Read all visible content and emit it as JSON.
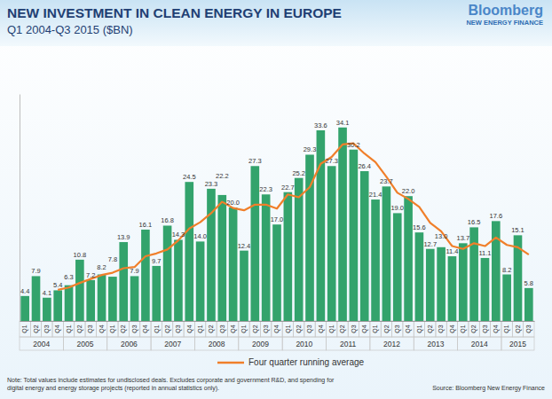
{
  "chart_data": {
    "type": "bar",
    "title": "NEW INVESTMENT IN CLEAN ENERGY IN EUROPE",
    "subtitle": "Q1 2004-Q3 2015 ($BN)",
    "brand": "Bloomberg",
    "brand_subtitle": "NEW ENERGY FINANCE",
    "note": [
      "Note: Total values include estimates for undisclosed deals. Excludes corporate and government R&D, and spending for",
      "digital energy and energy storage projects (reported in annual statistics only)."
    ],
    "source": "Source: Bloomberg New Energy Finance",
    "categories": [
      "Q1",
      "Q2",
      "Q3",
      "Q4",
      "Q1",
      "Q2",
      "Q3",
      "Q4",
      "Q1",
      "Q2",
      "Q3",
      "Q4",
      "Q1",
      "Q2",
      "Q3",
      "Q4",
      "Q1",
      "Q2",
      "Q3",
      "Q4",
      "Q1",
      "Q2",
      "Q3",
      "Q4",
      "Q1",
      "Q2",
      "Q3",
      "Q4",
      "Q1",
      "Q2",
      "Q3",
      "Q4",
      "Q1",
      "Q2",
      "Q3",
      "Q4",
      "Q1",
      "Q2",
      "Q3",
      "Q4",
      "Q1",
      "Q2",
      "Q3",
      "Q4",
      "Q1",
      "Q2",
      "Q3"
    ],
    "years": [
      "2004",
      "2005",
      "2006",
      "2007",
      "2008",
      "2009",
      "2010",
      "2011",
      "2012",
      "2013",
      "2014",
      "2015"
    ],
    "series": [
      {
        "type": "bar",
        "color": "#33a36c",
        "values": [
          4.4,
          7.9,
          4.1,
          5.4,
          6.3,
          10.8,
          7.2,
          8.2,
          7.8,
          13.9,
          7.9,
          16.1,
          9.7,
          16.8,
          14.3,
          24.5,
          14.0,
          23.3,
          22.2,
          20.0,
          12.4,
          27.3,
          22.3,
          17.0,
          22.7,
          25.2,
          29.3,
          33.6,
          27.3,
          34.1,
          30.2,
          26.4,
          21.4,
          23.7,
          19.0,
          22.0,
          15.6,
          12.7,
          13.0,
          11.4,
          13.7,
          16.5,
          11.1,
          17.6,
          8.2,
          15.1,
          5.8
        ],
        "value_labels": [
          "4.4",
          "7.9",
          "4.1",
          "5.4",
          "6.3",
          "10.8",
          "7.2",
          "8.2",
          "7.8",
          "13.9",
          "7.9",
          "16.1",
          "9.7",
          "16.8",
          "14.3",
          "24.5",
          "14.0",
          "23.3",
          "22.2",
          "20.0",
          "12.4",
          "27.3",
          "22.3",
          "17.0",
          "22.7",
          "25.2",
          "29.3",
          "33.6",
          "27.3",
          "34.1",
          "30.2",
          "26.4",
          "21.4",
          "23.7",
          "19.0",
          "22.0",
          "15.6",
          "12.7",
          "13.0",
          "11.4",
          "13.7",
          "16.5",
          "11.1",
          "17.6",
          "8.2",
          "15.1",
          "5.8"
        ]
      },
      {
        "type": "line",
        "name": "Four quarter running average",
        "color": "#f07f2a",
        "values": [
          null,
          null,
          null,
          5.5,
          5.9,
          6.7,
          7.4,
          8.1,
          8.5,
          9.3,
          9.5,
          11.4,
          11.9,
          12.6,
          14.2,
          16.3,
          17.4,
          19.0,
          21.0,
          19.9,
          19.5,
          20.5,
          20.5,
          19.8,
          22.3,
          21.8,
          23.6,
          27.7,
          28.9,
          31.1,
          31.3,
          29.5,
          28.0,
          25.4,
          22.6,
          21.5,
          20.1,
          17.3,
          15.8,
          13.2,
          12.7,
          13.7,
          13.2,
          14.7,
          13.4,
          13.0,
          11.7
        ]
      }
    ],
    "ylim": [
      0,
      40
    ],
    "grid": false,
    "data_labels": true,
    "tick_labels": "x",
    "legend": "bottom"
  }
}
